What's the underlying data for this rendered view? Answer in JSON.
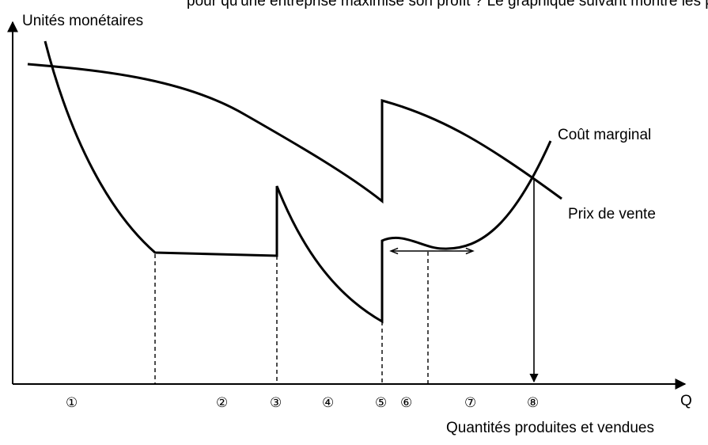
{
  "header_fragment": "pour qu'une entreprise maximise son profit ? Le graphique suivant montre les points de coût marginal",
  "axes": {
    "y_label": "Unités monétaires",
    "x_symbol": "Q",
    "x_label": "Quantités produites et vendues"
  },
  "curves": {
    "marginal_cost": "Coût marginal",
    "selling_price": "Prix de vente"
  },
  "zones": [
    "①",
    "②",
    "③",
    "④",
    "⑤",
    "⑥",
    "⑦",
    "⑧"
  ],
  "colors": {
    "ink": "#000000",
    "background": "#ffffff"
  }
}
